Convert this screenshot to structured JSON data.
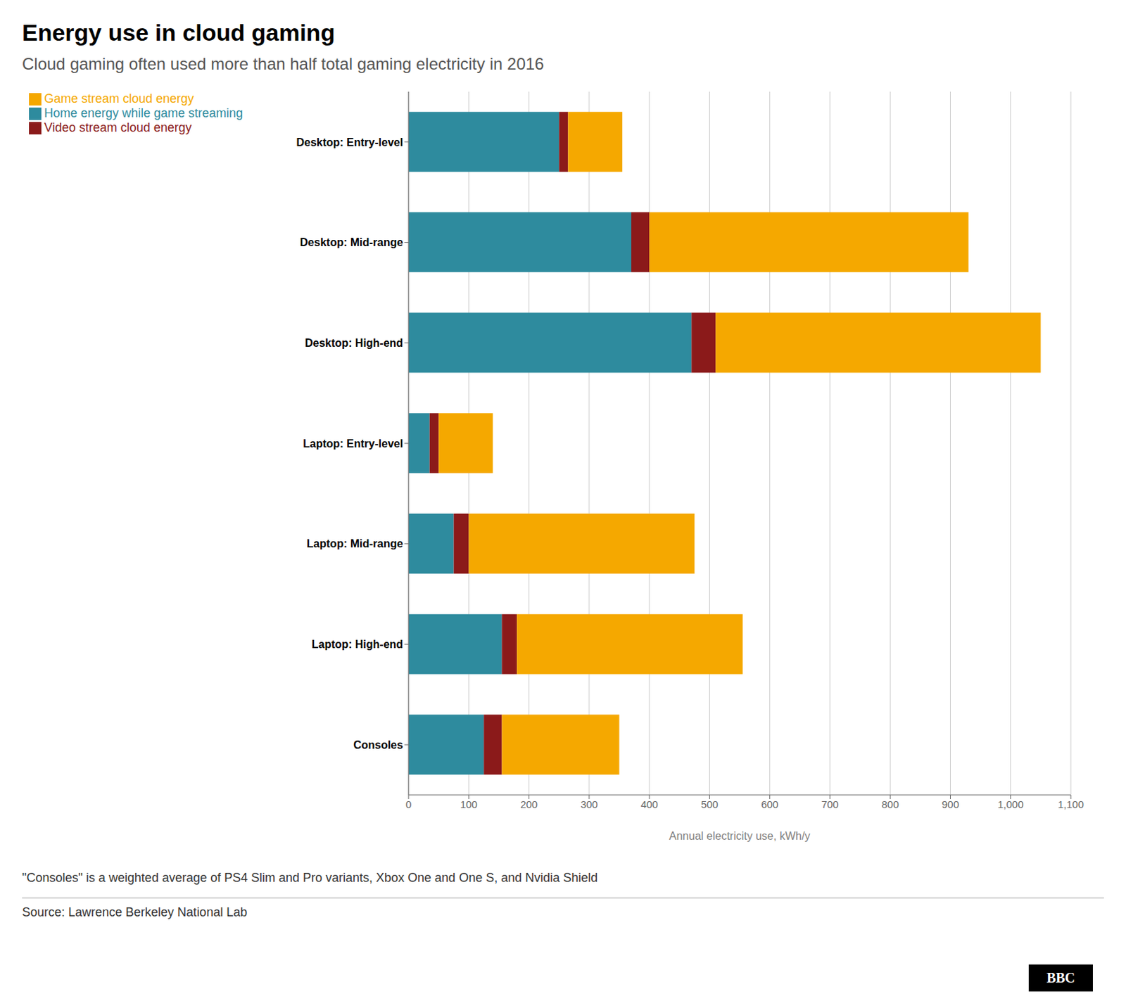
{
  "chart_data": {
    "type": "bar",
    "orientation": "horizontal",
    "stacked": true,
    "title": "Energy use in cloud gaming",
    "subtitle": "Cloud gaming often used more than half total gaming electricity in 2016",
    "categories": [
      "Desktop: Entry-level",
      "Desktop: Mid-range",
      "Desktop: High-end",
      "Laptop: Entry-level",
      "Laptop: Mid-range",
      "Laptop: High-end",
      "Consoles"
    ],
    "series": [
      {
        "name": "Home energy while game streaming",
        "color": "#2e8b9e",
        "values": [
          250,
          370,
          470,
          35,
          75,
          155,
          125
        ]
      },
      {
        "name": "Video stream cloud energy",
        "color": "#8b1a1a",
        "values": [
          15,
          30,
          40,
          15,
          25,
          25,
          30
        ]
      },
      {
        "name": "Game stream cloud energy",
        "color": "#f5a800",
        "values": [
          90,
          530,
          540,
          90,
          375,
          375,
          195
        ]
      }
    ],
    "xlabel": "Annual electricity use, kWh/y",
    "xlim": [
      0,
      1100
    ],
    "xticks": [
      0,
      100,
      200,
      300,
      400,
      500,
      600,
      700,
      800,
      900,
      {
        "value": 1000,
        "label": "1,000"
      },
      {
        "value": 1100,
        "label": "1,100"
      }
    ],
    "grid": "x",
    "legend": "top",
    "annotations": [
      "\"Consoles\" is a weighted average of PS4 Slim and Pro variants, Xbox One and One S, and Nvidia Shield",
      "Source: Lawrence Berkeley National Lab",
      "BBC"
    ]
  }
}
